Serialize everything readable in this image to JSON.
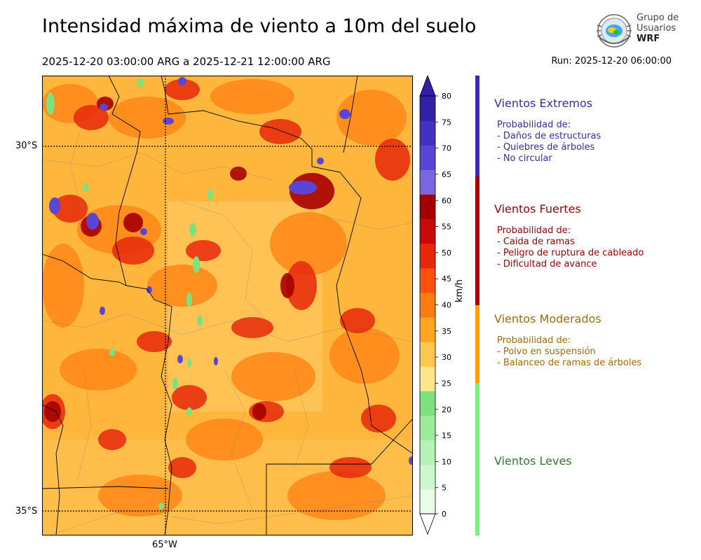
{
  "header": {
    "title": "Intensidad máxima de viento a 10m del suelo",
    "period": "2025-12-20 03:00:00 ARG  a  2025-12-21 12:00:00 ARG",
    "run": "Run: 2025-12-20 06:00:00"
  },
  "logo": {
    "line1": "Grupo de",
    "line2": "Usuarios",
    "line3": "WRF",
    "icon": "globe-icon"
  },
  "map": {
    "lat_labels": [
      "30°S",
      "35°S"
    ],
    "lon_labels": [
      "65°W"
    ]
  },
  "colorbar": {
    "unit": "km/h",
    "ticks": [
      "0",
      "5",
      "10",
      "15",
      "20",
      "25",
      "30",
      "35",
      "40",
      "45",
      "50",
      "55",
      "60",
      "65",
      "70",
      "75",
      "80"
    ],
    "colors": [
      "#e8fce8",
      "#cff7cf",
      "#b5f2b5",
      "#9aec9a",
      "#7de27d",
      "#ffe58a",
      "#ffc74d",
      "#ffa620",
      "#ff7a10",
      "#ff4f0c",
      "#e8280a",
      "#c90a0a",
      "#a70000",
      "#7a67e0",
      "#5a46d6",
      "#4232c2",
      "#3220a8"
    ],
    "extend_both": true
  },
  "categories": [
    {
      "title": "Vientos Extremos",
      "color": "#3a2ab0",
      "prob_label": "Probabilidad de:",
      "items": [
        "- Daños de estructuras",
        "- Quiebres de árboles",
        "- No circular"
      ]
    },
    {
      "title": "Vientos Fuertes",
      "color": "#a30000",
      "prob_label": "Probabilidad de:",
      "items": [
        "- Caida de ramas",
        "- Peligro de ruptura de cableado",
        "- Dificultad de avance"
      ]
    },
    {
      "title": "Vientos Moderados",
      "color": "#a86a00",
      "prob_label": "Probabilidad de:",
      "items": [
        "- Polvo en suspensión",
        "- Balanceo de ramas de árboles"
      ]
    },
    {
      "title": "Vientos Leves",
      "color": "#2f7a2f",
      "prob_label": "",
      "items": []
    }
  ],
  "legend_bar_colors": [
    "#3a2ab0",
    "#a70000",
    "#ffa000",
    "#7cf07c"
  ]
}
